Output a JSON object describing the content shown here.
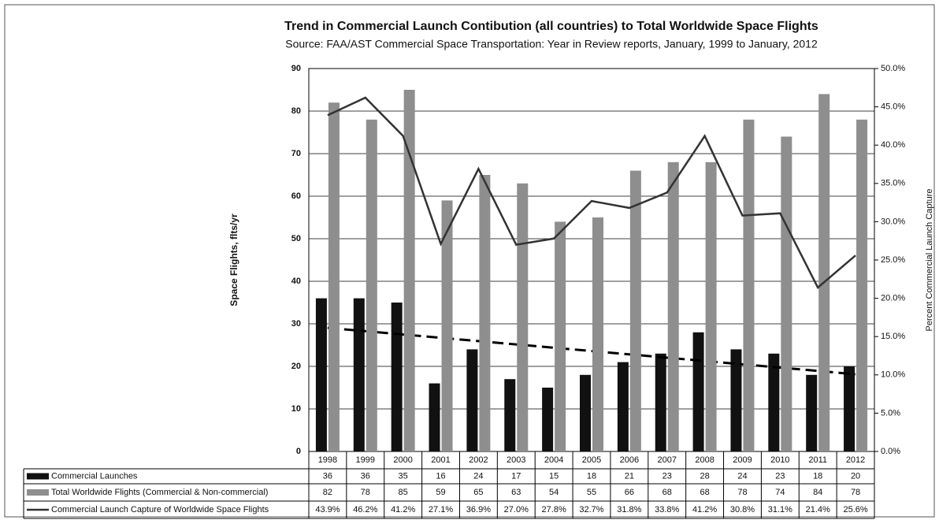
{
  "chart_data": {
    "type": "bar_line",
    "title": "Trend in Commercial Launch Contibution (all countries) to Total Worldwide Space Flights",
    "subtitle": "Source: FAA/AST Commercial Space Transportation: Year in Review reports, January, 1999 to January, 2012",
    "y_label": "Space Flights, flts/yr",
    "y2_label": "Percent Commercial Launch Capture",
    "categories": [
      "1998",
      "1999",
      "2000",
      "2001",
      "2002",
      "2003",
      "2004",
      "2005",
      "2006",
      "2007",
      "2008",
      "2009",
      "2010",
      "2011",
      "2012"
    ],
    "series": [
      {
        "name": "Commercial Launches",
        "color": "#111111",
        "trendline": "linear",
        "values": [
          36,
          36,
          35,
          16,
          24,
          17,
          15,
          18,
          21,
          23,
          28,
          24,
          23,
          18,
          20
        ]
      },
      {
        "name": "Total Worldwide Flights (Commercial & Non-commercial)",
        "color": "#8e8e8e",
        "values": [
          82,
          78,
          85,
          59,
          65,
          63,
          54,
          55,
          66,
          68,
          68,
          78,
          74,
          84,
          78
        ]
      },
      {
        "name": "Commercial Launch Capture of Worldwide Space Flights",
        "color": "#333333",
        "axis": "y2",
        "type": "line",
        "values": [
          43.9,
          46.2,
          41.2,
          27.1,
          36.9,
          27.0,
          27.8,
          32.7,
          31.8,
          33.8,
          41.2,
          30.8,
          31.1,
          21.4,
          25.6
        ],
        "value_labels": [
          "43.9%",
          "46.2%",
          "41.2%",
          "27.1%",
          "36.9%",
          "27.0%",
          "27.8%",
          "32.7%",
          "31.8%",
          "33.8%",
          "41.2%",
          "30.8%",
          "31.1%",
          "21.4%",
          "25.6%"
        ]
      }
    ],
    "ylim": [
      0,
      90
    ],
    "yticks": [
      0,
      10,
      20,
      30,
      40,
      50,
      60,
      70,
      80,
      90
    ],
    "y2lim": [
      0,
      50
    ],
    "y2ticks": [
      {
        "value": 0,
        "label": "0.0%"
      },
      {
        "value": 5,
        "label": "5.0%"
      },
      {
        "value": 10,
        "label": "10.0%"
      },
      {
        "value": 15,
        "label": "15.0%"
      },
      {
        "value": 20,
        "label": "20.0%"
      },
      {
        "value": 25,
        "label": "25.0%"
      },
      {
        "value": 30,
        "label": "30.0%"
      },
      {
        "value": 35,
        "label": "35.0%"
      },
      {
        "value": 40,
        "label": "40.0%"
      },
      {
        "value": 45,
        "label": "45.0%"
      },
      {
        "value": 50,
        "label": "50.0%"
      }
    ],
    "grid": true
  }
}
